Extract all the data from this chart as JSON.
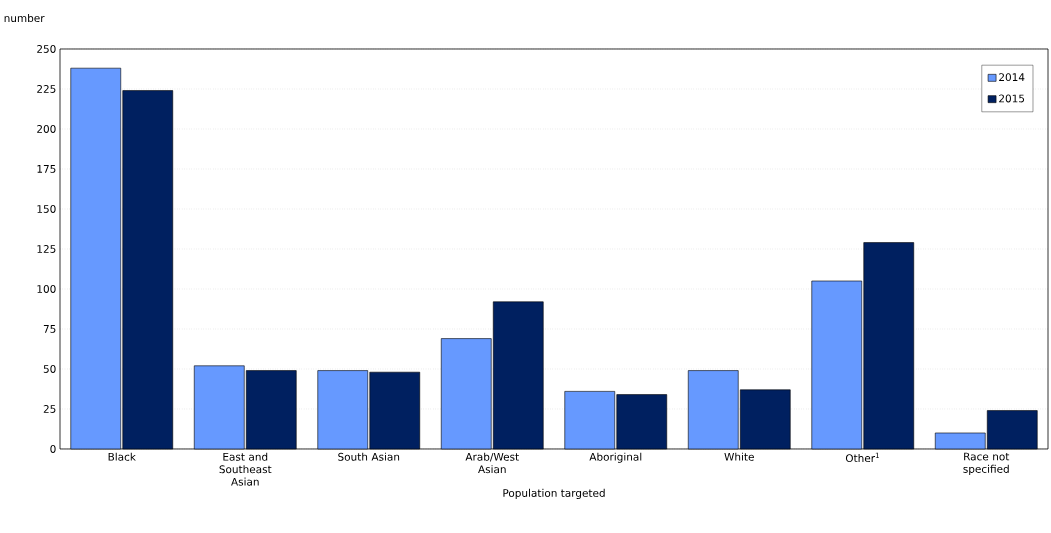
{
  "chart_data": {
    "type": "bar",
    "xlabel": "Population targeted",
    "ylabel": "number",
    "categories": [
      "Black",
      "East and Southeast Asian",
      "South Asian",
      "Arab/West Asian",
      "Aboriginal",
      "White",
      "Other$^{1}$",
      "Race not specified"
    ],
    "series": [
      {
        "name": "2014",
        "color": "#6699ff",
        "values": [
          238,
          52,
          49,
          69,
          36,
          49,
          105,
          10
        ]
      },
      {
        "name": "2015",
        "color": "#002060",
        "values": [
          224,
          49,
          48,
          92,
          34,
          37,
          129,
          24
        ]
      }
    ],
    "ylim": [
      0,
      250
    ],
    "yticks": [
      0,
      25,
      50,
      75,
      100,
      125,
      150,
      175,
      200,
      225,
      250
    ],
    "grid": "y",
    "legend": "top right"
  }
}
